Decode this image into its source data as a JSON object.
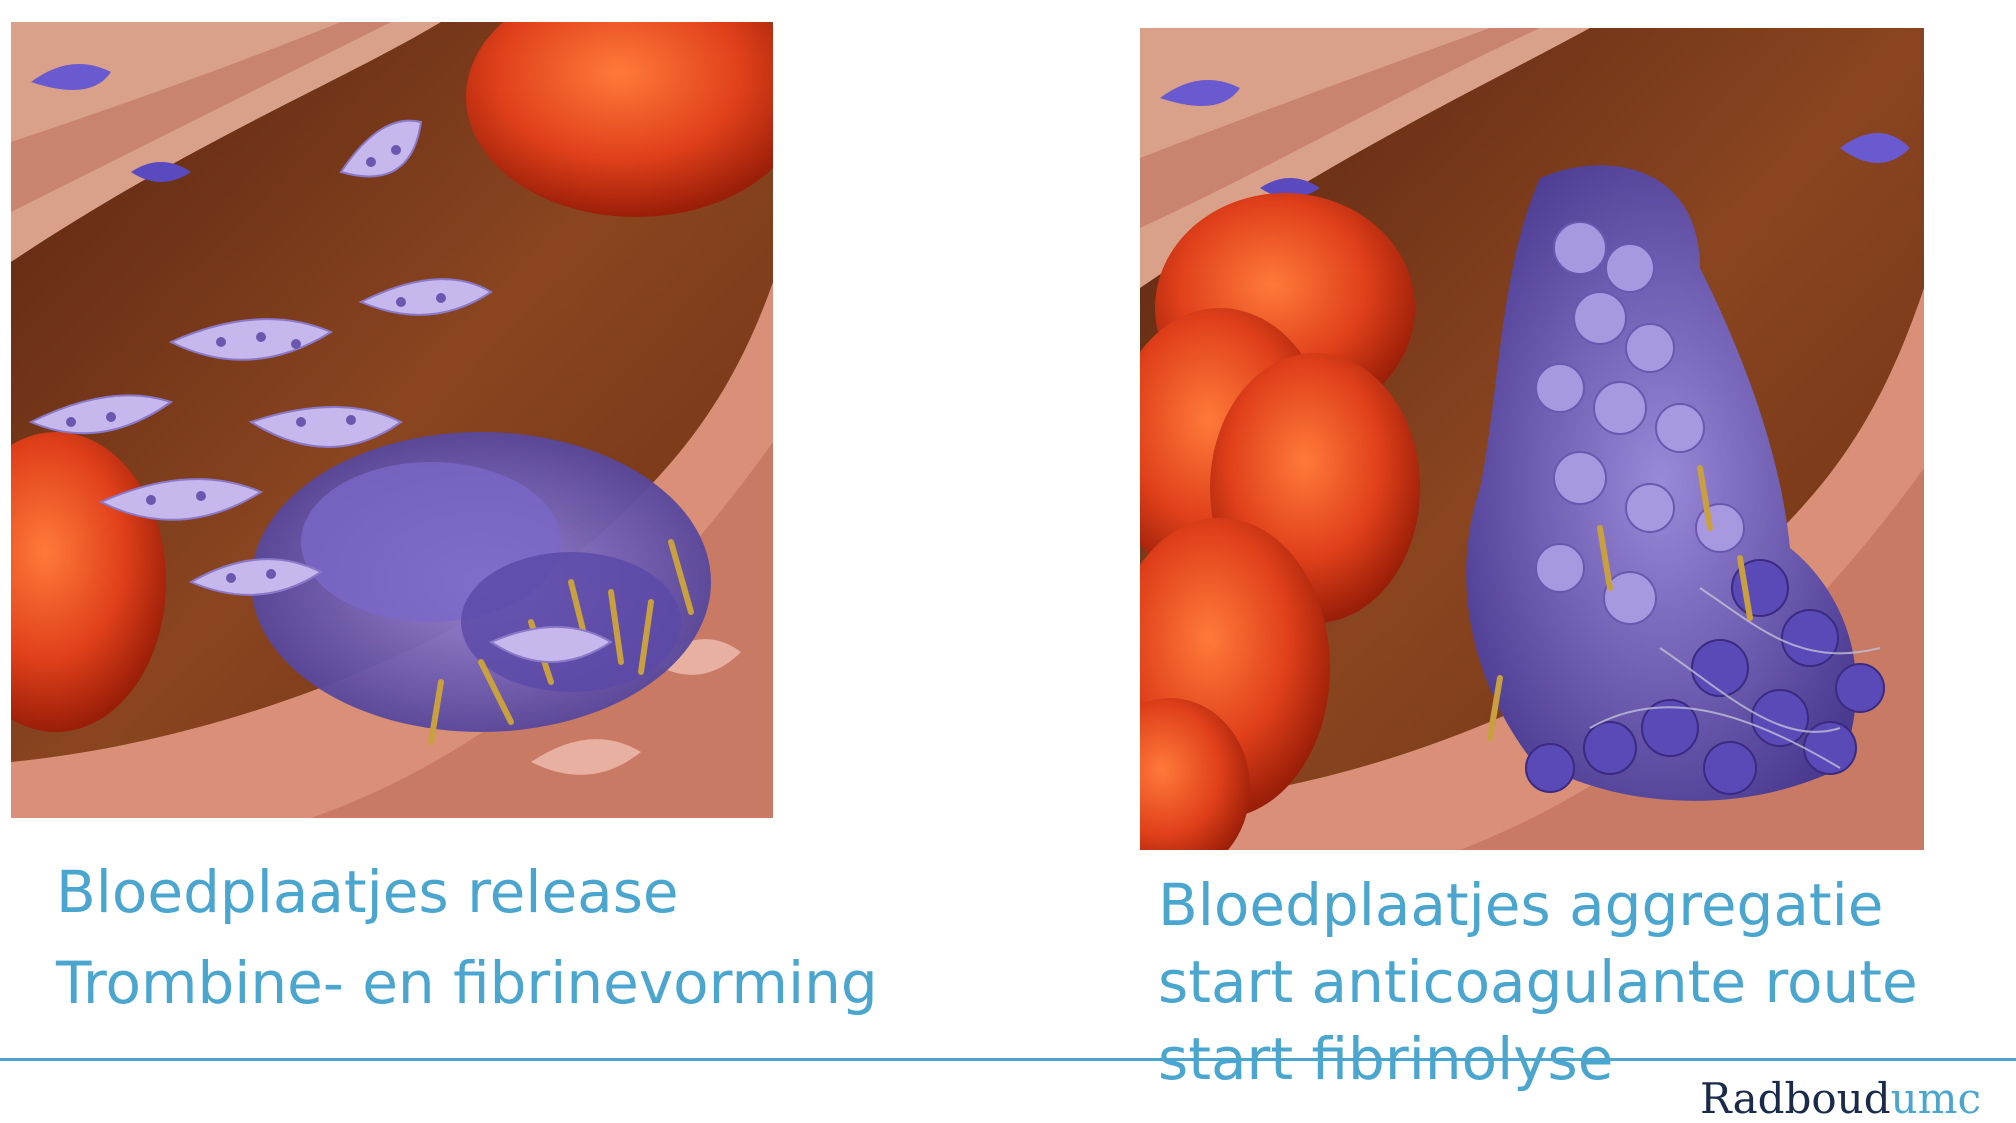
{
  "panels": [
    {
      "caption": [
        "Bloedplaatjes release",
        "Trombine- en fibrinevorming"
      ]
    },
    {
      "caption": [
        "Bloedplaatjes aggregatie",
        "start anticoagulante route",
        "start fibrinolyse"
      ]
    }
  ],
  "logo": {
    "text_main": "Radboud",
    "text_accent": "umc"
  },
  "colors": {
    "caption": "#4aa6cf",
    "rule": "#4aa6cf",
    "logo_main": "#1a2a4a",
    "logo_accent": "#4aa6cf"
  }
}
